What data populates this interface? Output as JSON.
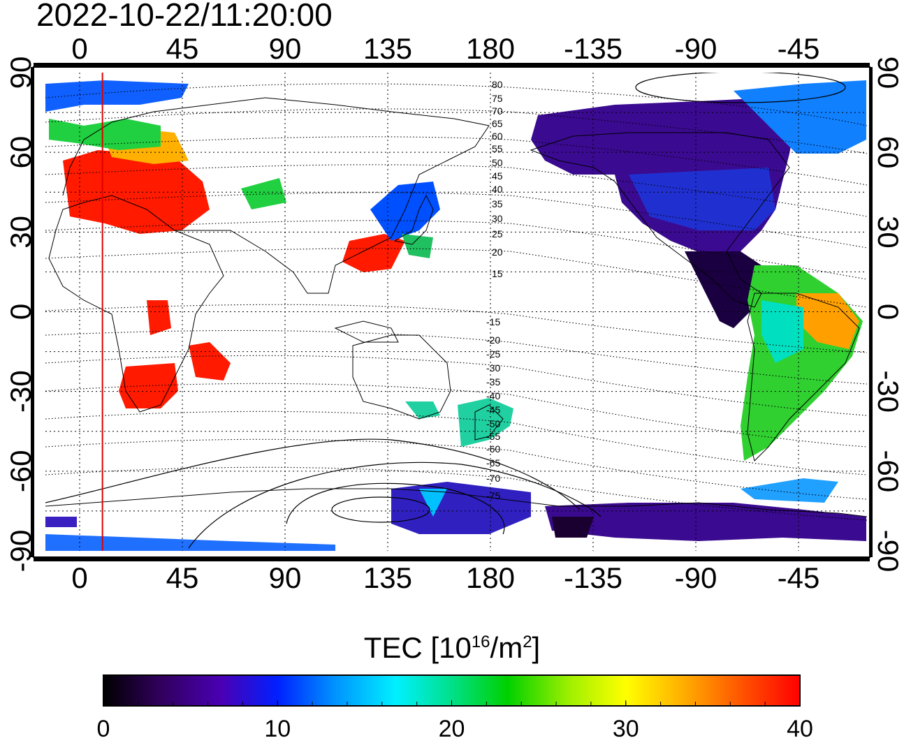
{
  "title": "2022-10-22/11:20:00",
  "map": {
    "lon_ticks_top": [
      "0",
      "45",
      "90",
      "135",
      "180",
      "-135",
      "-90",
      "-45"
    ],
    "lon_ticks_bottom": [
      "0",
      "45",
      "90",
      "135",
      "180",
      "-135",
      "-90",
      "-45"
    ],
    "lat_ticks_left": [
      "90",
      "60",
      "30",
      "0",
      "-30",
      "-60",
      "-90"
    ],
    "lat_ticks_right": [
      "90",
      "60",
      "30",
      "0",
      "-30",
      "-60",
      "-90"
    ],
    "contour_labels_north": [
      "80",
      "75",
      "70",
      "65",
      "60",
      "55",
      "50",
      "45",
      "40",
      "35",
      "30",
      "25",
      "20",
      "15"
    ],
    "contour_labels_south": [
      "-15",
      "-20",
      "-25",
      "-30",
      "-35",
      "-40",
      "-45",
      "-50",
      "-55",
      "-60",
      "-65",
      "-70",
      "-75"
    ],
    "marker_longitude": 10,
    "marker_color": "#e00000"
  },
  "colorbar": {
    "title_main": "TEC  [10",
    "title_exp": "16",
    "title_unit": "/m",
    "title_unit_exp": "2",
    "title_close": "]",
    "ticks": [
      "0",
      "10",
      "20",
      "30",
      "40"
    ],
    "min": 0,
    "max": 40,
    "colors": [
      "#000000",
      "#30005a",
      "#4a00b4",
      "#0020ff",
      "#0090ff",
      "#00f0ff",
      "#00e08a",
      "#00d000",
      "#a0f000",
      "#ffff00",
      "#ffb000",
      "#ff5000",
      "#ff0000"
    ]
  }
}
